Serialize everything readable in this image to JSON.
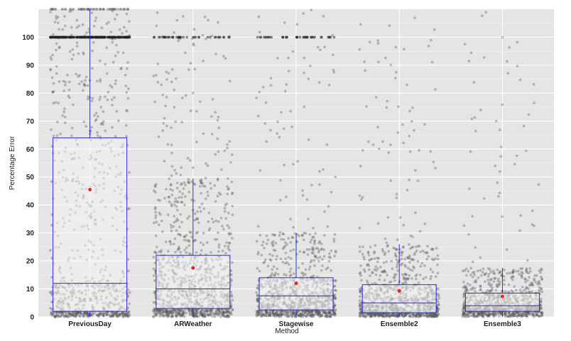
{
  "chart_data": {
    "type": "box",
    "title": "",
    "xlabel": "Method",
    "ylabel": "Percentage Error",
    "ylim": [
      0,
      110
    ],
    "yticks": [
      0,
      10,
      20,
      30,
      40,
      50,
      60,
      70,
      80,
      90,
      100
    ],
    "categories": [
      "PreviousDay",
      "ARWeather",
      "Stagewise",
      "Ensemble2",
      "Ensemble3"
    ],
    "grid": true,
    "legend": "none",
    "series": [
      {
        "category": "PreviousDay",
        "q1": 2,
        "median": 12,
        "q3": 64,
        "whisker_low": 0,
        "whisker_high": 110,
        "mean": 45.5
      },
      {
        "category": "ARWeather",
        "q1": 3,
        "median": 10,
        "q3": 22,
        "whisker_low": 0,
        "whisker_high": 49.5,
        "mean": 17.5
      },
      {
        "category": "Stagewise",
        "q1": 2.5,
        "median": 7.5,
        "q3": 14,
        "whisker_low": 0,
        "whisker_high": 30,
        "mean": 12
      },
      {
        "category": "Ensemble2",
        "q1": 1.5,
        "median": 5,
        "q3": 11.5,
        "whisker_low": 0,
        "whisker_high": 26,
        "mean": 9.3
      },
      {
        "category": "Ensemble3",
        "q1": 2,
        "median": 4,
        "q3": 8.5,
        "whisker_low": 0,
        "whisker_high": 17.5,
        "mean": 7.3
      }
    ],
    "jitter_points": {
      "shown": true,
      "spike_at_100": {
        "PreviousDay": true,
        "ARWeather": true,
        "Stagewise": true,
        "Ensemble2": false,
        "Ensemble3": false
      }
    },
    "colors": {
      "panel_background": "#e5e5e5",
      "gridline": "#ffffff",
      "box_stroke": "#2a2ae6",
      "box_fill": "#f4f4f4",
      "points": "#555555",
      "mean_marker": "#e82020"
    }
  }
}
